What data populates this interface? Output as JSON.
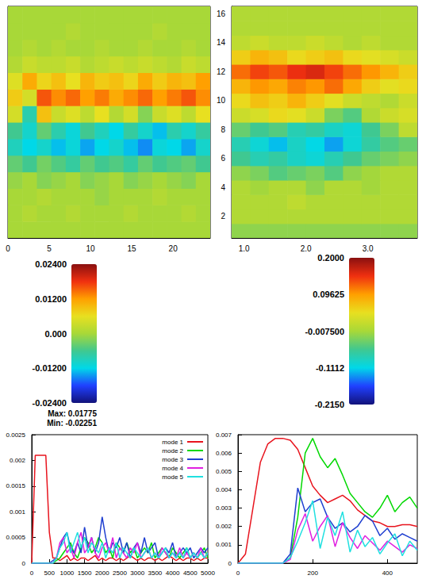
{
  "chart_data": [
    {
      "type": "heatmap",
      "xlim": [
        0,
        24.5
      ],
      "ylim": [
        0,
        28
      ],
      "xticks": [
        0,
        5,
        10,
        15,
        20
      ],
      "tick_labels": "x",
      "x_edges": [
        0,
        1.75,
        3.5,
        5.25,
        7,
        8.75,
        10.5,
        12.25,
        14,
        15.75,
        17.5,
        19.25,
        21,
        22.75,
        24.5
      ],
      "y_edges": [
        0,
        2,
        4,
        6,
        8,
        10,
        12,
        14,
        16,
        18,
        20,
        22,
        24,
        26,
        28
      ],
      "values": [
        [
          0,
          0,
          0,
          0,
          0,
          0,
          0,
          0,
          0,
          0,
          0,
          0,
          0,
          0
        ],
        [
          0,
          0.001,
          0,
          0,
          0.001,
          0,
          0,
          0,
          0.001,
          0,
          0,
          0,
          0.001,
          0
        ],
        [
          0,
          0,
          0.001,
          0,
          0,
          0,
          -0.001,
          0,
          0,
          0,
          0.001,
          0,
          0,
          0
        ],
        [
          -0.001,
          0,
          -0.002,
          -0.001,
          0,
          -0.002,
          -0.001,
          0,
          -0.002,
          -0.001,
          0,
          -0.001,
          -0.002,
          0
        ],
        [
          -0.004,
          -0.006,
          -0.003,
          -0.005,
          -0.007,
          -0.004,
          -0.006,
          -0.005,
          -0.007,
          -0.004,
          -0.006,
          -0.005,
          -0.004,
          -0.006
        ],
        [
          -0.009,
          -0.012,
          -0.01,
          -0.013,
          -0.011,
          -0.014,
          -0.012,
          -0.01,
          -0.013,
          -0.015,
          -0.011,
          -0.012,
          -0.014,
          -0.01
        ],
        [
          -0.006,
          -0.01,
          -0.004,
          -0.008,
          -0.011,
          -0.006,
          -0.009,
          -0.012,
          -0.007,
          -0.01,
          -0.013,
          -0.008,
          -0.01,
          -0.007
        ],
        [
          0.004,
          -0.008,
          0.009,
          0.003,
          0.005,
          0.002,
          0.006,
          0.001,
          0.004,
          -0.002,
          0.003,
          0.005,
          0.002,
          0.006
        ],
        [
          0.008,
          0.004,
          0.016,
          0.013,
          0.015,
          0.012,
          0.014,
          0.011,
          0.013,
          0.015,
          0.012,
          0.014,
          0.016,
          0.013
        ],
        [
          0.005,
          0.011,
          0.007,
          0.009,
          0.006,
          0.01,
          0.008,
          0.009,
          0.007,
          0.011,
          0.008,
          0.01,
          0.009,
          0.012
        ],
        [
          0.001,
          0.003,
          0.002,
          0.002,
          0.003,
          0.001,
          0.002,
          0.003,
          0.002,
          0.003,
          0.002,
          0.001,
          0.003,
          0.002
        ],
        [
          0,
          0.001,
          0,
          0.001,
          0,
          0,
          0.001,
          0,
          0,
          0.001,
          0,
          0,
          0.001,
          0
        ],
        [
          0,
          0,
          0,
          0,
          0.001,
          0,
          0,
          0,
          0,
          0,
          0.001,
          0,
          0,
          0
        ],
        [
          0,
          0,
          0,
          0,
          0,
          0,
          0,
          0,
          0,
          0,
          0,
          0,
          0,
          0
        ]
      ],
      "colorbar": {
        "range": [
          -0.024,
          0.024
        ],
        "ticks": [
          {
            "value": 0.024,
            "label": "0.02400"
          },
          {
            "value": 0.012,
            "label": "0.01200"
          },
          {
            "value": 0,
            "label": "0.000"
          },
          {
            "value": -0.012,
            "label": "-0.01200"
          },
          {
            "value": -0.024,
            "label": "-0.02400"
          }
        ],
        "max": {
          "value": 0.01775,
          "label": "Max: 0.01775"
        },
        "min": {
          "value": -0.02251,
          "label": "Min: -0.02251"
        }
      }
    },
    {
      "type": "heatmap",
      "xlim": [
        0.8,
        3.8
      ],
      "ylim": [
        0.5,
        16.5
      ],
      "xticks": [
        {
          "value": 1,
          "label": "1.0"
        },
        {
          "value": 2,
          "label": "2.0"
        },
        {
          "value": 3,
          "label": "3.0"
        }
      ],
      "yticks": [
        2,
        4,
        6,
        8,
        10,
        12,
        14,
        16
      ],
      "x_edges": [
        0.8,
        1.1,
        1.4,
        1.7,
        2.0,
        2.3,
        2.6,
        2.9,
        3.2,
        3.5,
        3.8
      ],
      "y_edges": [
        0.5,
        1.5,
        2.5,
        3.5,
        4.5,
        5.5,
        6.5,
        7.5,
        8.5,
        9.5,
        10.5,
        11.5,
        12.5,
        13.5,
        14.5,
        15.5,
        16.5
      ],
      "values": [
        [
          -0.02,
          -0.02,
          -0.02,
          -0.02,
          -0.02,
          -0.02,
          -0.02,
          -0.02,
          -0.02,
          -0.02
        ],
        [
          0,
          0,
          0,
          0,
          0,
          0,
          0,
          0,
          0,
          0
        ],
        [
          0,
          0,
          0,
          0.01,
          0,
          0,
          0,
          0,
          0,
          0
        ],
        [
          0,
          -0.01,
          0,
          0,
          -0.02,
          0,
          0,
          -0.01,
          0,
          0
        ],
        [
          -0.02,
          -0.03,
          -0.05,
          -0.04,
          -0.03,
          -0.05,
          -0.02,
          -0.01,
          0,
          0
        ],
        [
          -0.06,
          -0.08,
          -0.07,
          -0.09,
          -0.1,
          -0.08,
          -0.06,
          -0.04,
          -0.03,
          -0.02
        ],
        [
          -0.08,
          -0.1,
          -0.12,
          -0.09,
          -0.11,
          -0.13,
          -0.1,
          -0.07,
          -0.05,
          -0.04
        ],
        [
          -0.04,
          -0.06,
          -0.05,
          -0.08,
          -0.07,
          -0.09,
          -0.1,
          -0.06,
          -0.03,
          0.01
        ],
        [
          0.02,
          0.03,
          0.05,
          0.04,
          0.02,
          -0.03,
          -0.05,
          0,
          0.02,
          0.03
        ],
        [
          0.05,
          0.07,
          0.06,
          0.08,
          0.06,
          0.04,
          0.02,
          0.01,
          0,
          0.02
        ],
        [
          0.08,
          0.1,
          0.09,
          0.11,
          0.1,
          0.12,
          0.09,
          0.06,
          0.04,
          0.05
        ],
        [
          0.12,
          0.14,
          0.13,
          0.15,
          0.16,
          0.14,
          0.12,
          0.1,
          0.08,
          0.06
        ],
        [
          0.06,
          0.08,
          0.07,
          0.05,
          0.06,
          0.07,
          0.05,
          0.04,
          0.03,
          0.02
        ],
        [
          0.01,
          0.02,
          0.01,
          0.01,
          0.02,
          0.01,
          0,
          0.01,
          0,
          0
        ],
        [
          0,
          0,
          0,
          0,
          0,
          0,
          0,
          0,
          0,
          0
        ],
        [
          0,
          0,
          0,
          0,
          0,
          0,
          0,
          0,
          0,
          0
        ]
      ],
      "colorbar": {
        "range": [
          -0.215,
          0.2
        ],
        "ticks": [
          {
            "value": 0.2,
            "label": "0.2000"
          },
          {
            "value": 0.09625,
            "label": "0.09625"
          },
          {
            "value": -0.0075,
            "label": "-0.007500"
          },
          {
            "value": -0.11125,
            "label": "-0.1112"
          },
          {
            "value": -0.215,
            "label": "-0.2150"
          }
        ]
      }
    },
    {
      "type": "line",
      "xlim": [
        0,
        5000
      ],
      "ylim": [
        0,
        0.0025
      ],
      "xticks": [
        0,
        500,
        1000,
        1500,
        2000,
        2500,
        3000,
        3500,
        4000,
        4500,
        5000
      ],
      "yticks": [
        0,
        0.0005,
        0.001,
        0.0015,
        0.002,
        0.0025
      ],
      "legend": "upper right",
      "x": [
        0,
        100,
        200,
        300,
        400,
        500,
        600,
        700,
        800,
        900,
        1000,
        1100,
        1200,
        1300,
        1400,
        1500,
        1600,
        1700,
        1800,
        1900,
        2000,
        2100,
        2200,
        2300,
        2400,
        2500,
        2600,
        2700,
        2800,
        2900,
        3000,
        3100,
        3200,
        3300,
        3400,
        3500,
        3600,
        3700,
        3800,
        3900,
        4000,
        4100,
        4200,
        4300,
        4400,
        4500,
        4600,
        4700,
        4800,
        4900,
        5000
      ],
      "series": [
        {
          "name": "mode 1",
          "color": "#e8141e",
          "values": [
            0,
            0.0021,
            0.0021,
            0.0021,
            0.0021,
            0.0006,
            0.0001,
            0.0001,
            5e-05,
            0.0001,
            0.00015,
            5e-05,
            0.0001,
            5e-05,
            0.0001,
            0.0001,
            5e-05,
            0.0001,
            0.00015,
            5e-05,
            0.0001,
            5e-05,
            0.0001,
            0.0001,
            5e-05,
            0.0001,
            5e-05,
            0.0001,
            0.00015,
            0.0001,
            5e-05,
            0.0001,
            5e-05,
            0.0001,
            0.0001,
            5e-05,
            0.0001,
            5e-05,
            0.0001,
            0.00015,
            0.0001,
            5e-05,
            0.0001,
            5e-05,
            0.0001,
            0.0001,
            5e-05,
            0.0001,
            5e-05,
            0.0001,
            0.0001
          ]
        },
        {
          "name": "mode 2",
          "color": "#00d800",
          "values": [
            0,
            0,
            0,
            0,
            0,
            0,
            0,
            5e-05,
            0.0001,
            0.0002,
            0.0003,
            0.0004,
            0.0002,
            0.0001,
            0.0003,
            0.0005,
            0.0004,
            0.0002,
            0.0003,
            0.0005,
            0.0004,
            0.0002,
            0.0003,
            0.0001,
            0.0004,
            0.0003,
            0.0002,
            0.0004,
            0.0002,
            0.0003,
            0.0001,
            0.0002,
            0.0003,
            0.0002,
            0.0004,
            0.0001,
            0.0002,
            0.0003,
            0.0002,
            0.0001,
            0.0003,
            0.0002,
            0.0001,
            0.0002,
            0.0003,
            0.0001,
            0.0002,
            0.0001,
            0.0002,
            0.0003,
            0.0001
          ]
        },
        {
          "name": "mode 3",
          "color": "#1f3fd0",
          "values": [
            0,
            0,
            0,
            0,
            0,
            0,
            5e-05,
            0.0001,
            0.0003,
            0.0005,
            0.0006,
            0.0003,
            0.0002,
            0.0004,
            0.0002,
            0.0007,
            0.0003,
            0.0005,
            0.0002,
            0.0004,
            0.0009,
            0.0005,
            0.0002,
            0.0004,
            0.0003,
            0.0005,
            0.0002,
            0.0004,
            0.0001,
            0.0003,
            0.0004,
            0.0002,
            0.0005,
            0.0002,
            0.0003,
            0.0004,
            0.0001,
            0.0002,
            0.0003,
            0.0002,
            0.0004,
            0.0001,
            0.0002,
            0.0003,
            0.0002,
            0.0003,
            0.0001,
            0.0002,
            0.0003,
            0.0002,
            0.0003
          ]
        },
        {
          "name": "mode 4",
          "color": "#e020e0",
          "values": [
            0,
            0,
            0,
            0,
            0,
            0,
            0,
            0.0001,
            0.0004,
            0.0005,
            0.0002,
            0.0003,
            0.0001,
            0.0004,
            0.0006,
            0.0002,
            0.0003,
            0.0005,
            0.0002,
            0.0001,
            0.0003,
            0.0004,
            0.0002,
            0.0005,
            0.0001,
            0.0003,
            0.0002,
            0.0001,
            0.0003,
            0.0002,
            0.0004,
            0.0001,
            0.0002,
            0.0003,
            0.0001,
            0.0002,
            0.0001,
            0.0003,
            0.0002,
            0.0001,
            0.0002,
            0.0001,
            0.0003,
            0.0001,
            0.0002,
            0.0001,
            0.0002,
            0.0001,
            0.0003,
            0.0001,
            0.0002
          ]
        },
        {
          "name": "mode 5",
          "color": "#20e0e0",
          "values": [
            0,
            0,
            0,
            0,
            0,
            0,
            0,
            0.0001,
            0.0003,
            0.0004,
            0.0006,
            0.0002,
            0.0004,
            0.0006,
            0.0003,
            0.0005,
            0.0002,
            0.0004,
            0.0003,
            0.0002,
            0.0004,
            0.0001,
            0.0003,
            0.0002,
            0.0004,
            0.0001,
            0.0003,
            0.0002,
            0.0001,
            0.0003,
            0.0002,
            0.0001,
            0.0002,
            0.0003,
            0.0001,
            0.0002,
            0.0001,
            0.0002,
            0.0003,
            0.0001,
            0.0002,
            0.0001,
            0.0002,
            0.0001,
            0.0003,
            0.0001,
            0.0002,
            0.0001,
            0.0002,
            0.0001,
            0.0002
          ]
        }
      ]
    },
    {
      "type": "line",
      "xlim": [
        0,
        480
      ],
      "ylim": [
        0,
        0.007
      ],
      "xticks": [
        0,
        200,
        400
      ],
      "yticks": [
        0,
        0.001,
        0.002,
        0.003,
        0.004,
        0.005,
        0.006,
        0.007
      ],
      "x": [
        0,
        20,
        40,
        60,
        80,
        100,
        120,
        140,
        160,
        180,
        200,
        220,
        240,
        260,
        280,
        300,
        320,
        340,
        360,
        380,
        400,
        420,
        440,
        460,
        480
      ],
      "series": [
        {
          "name": "mode 1",
          "color": "#e8141e",
          "values": [
            0,
            0.0005,
            0.003,
            0.0055,
            0.0065,
            0.0068,
            0.0068,
            0.0067,
            0.0062,
            0.0052,
            0.0042,
            0.0037,
            0.0033,
            0.0035,
            0.0037,
            0.0034,
            0.0029,
            0.0026,
            0.0023,
            0.0022,
            0.002,
            0.002,
            0.0021,
            0.0021,
            0.002
          ]
        },
        {
          "name": "mode 2",
          "color": "#00d800",
          "values": [
            0,
            0,
            0,
            0,
            0,
            0,
            0,
            0.0003,
            0.0025,
            0.006,
            0.0068,
            0.0058,
            0.0052,
            0.0057,
            0.0048,
            0.0038,
            0.0033,
            0.0028,
            0.0025,
            0.003,
            0.0037,
            0.0028,
            0.0033,
            0.0036,
            0.003
          ]
        },
        {
          "name": "mode 3",
          "color": "#1f3fd0",
          "values": [
            0,
            0,
            0,
            0,
            0,
            0,
            0,
            0.0005,
            0.0041,
            0.0028,
            0.0033,
            0.0035,
            0.0025,
            0.0019,
            0.0022,
            0.0017,
            0.002,
            0.0026,
            0.0023,
            0.0015,
            0.0019,
            0.0013,
            0.0016,
            0.0014,
            0.0012
          ]
        },
        {
          "name": "mode 4",
          "color": "#e020e0",
          "values": [
            0,
            0,
            0,
            0,
            0,
            0,
            0,
            0.0002,
            0.0018,
            0.0027,
            0.0012,
            0.002,
            0.0026,
            0.0009,
            0.0022,
            0.0014,
            0.0008,
            0.0015,
            0.0011,
            0.0007,
            0.0012,
            0.0009,
            0.0006,
            0.001,
            0.0008
          ]
        },
        {
          "name": "mode 5",
          "color": "#20e0e0",
          "values": [
            0,
            0,
            0,
            0,
            0,
            0,
            0,
            0.0003,
            0.0012,
            0.0022,
            0.0034,
            0.0008,
            0.0025,
            0.0015,
            0.0028,
            0.0006,
            0.0018,
            0.0009,
            0.0014,
            0.0005,
            0.0011,
            0.0016,
            0.0004,
            0.0012,
            0.0007
          ]
        }
      ]
    }
  ]
}
